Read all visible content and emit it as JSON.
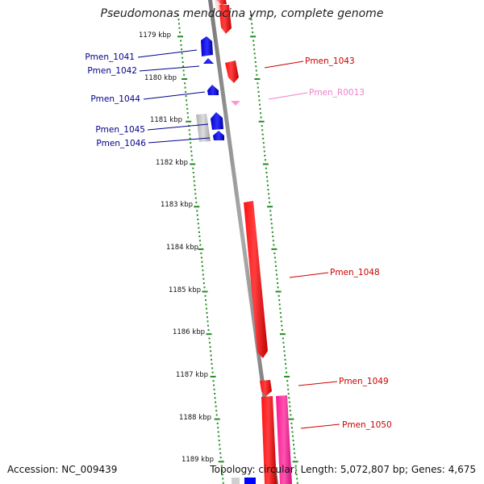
{
  "title": "Pseudomonas mendocina ymp, complete genome",
  "footer": {
    "accession": "Accession: NC_009439",
    "topology": "Topology: circular; Length: 5,072,807 bp; Genes: 4,675"
  },
  "colors": {
    "forward_gene": "#0000ff",
    "reverse_gene": "#ff0000",
    "rna_gene": "#ff99cc",
    "pseudo_gene": "#c0c0c0",
    "highlight_gene": "#ff1493",
    "backbone": "#888888",
    "ticks": "#228b22",
    "forward_label": "#00008b",
    "reverse_label": "#cc0000",
    "rna_label": "#ee82c8"
  },
  "tick_labels": [
    "1179 kbp",
    "1180 kbp",
    "1181 kbp",
    "1182 kbp",
    "1183 kbp",
    "1184 kbp",
    "1185 kbp",
    "1186 kbp",
    "1187 kbp",
    "1188 kbp",
    "1189 kbp"
  ],
  "genes": [
    {
      "label": "Pmen_1041",
      "strand": "forward",
      "type": "cds"
    },
    {
      "label": "Pmen_1042",
      "strand": "forward",
      "type": "cds"
    },
    {
      "label": "Pmen_1044",
      "strand": "forward",
      "type": "cds"
    },
    {
      "label": "Pmen_1045",
      "strand": "forward",
      "type": "cds"
    },
    {
      "label": "Pmen_1046",
      "strand": "forward",
      "type": "cds"
    },
    {
      "label": "Pmen_1043",
      "strand": "reverse",
      "type": "cds"
    },
    {
      "label": "Pmen_R0013",
      "strand": "reverse",
      "type": "rna"
    },
    {
      "label": "Pmen_1048",
      "strand": "reverse",
      "type": "cds"
    },
    {
      "label": "Pmen_1049",
      "strand": "reverse",
      "type": "cds"
    },
    {
      "label": "Pmen_1050",
      "strand": "reverse",
      "type": "cds"
    }
  ]
}
